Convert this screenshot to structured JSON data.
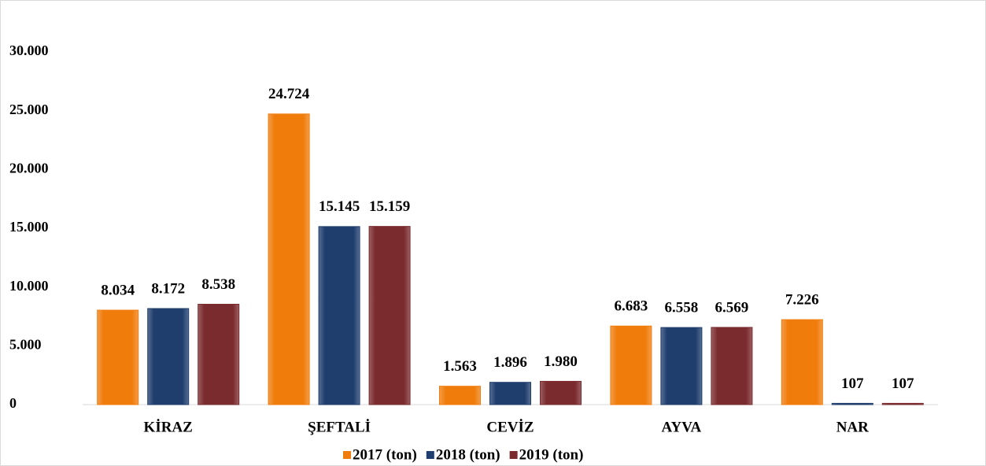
{
  "chart_data": {
    "type": "bar",
    "categories": [
      "KİRAZ",
      "ŞEFTALİ",
      "CEVİZ",
      "AYVA",
      "NAR"
    ],
    "series": [
      {
        "name": "2017 (ton)",
        "color": "#f07c0c",
        "values": [
          8034,
          24724,
          1563,
          6683,
          7226
        ],
        "value_labels": [
          "8.034",
          "24.724",
          "1.563",
          "6.683",
          "7.226"
        ]
      },
      {
        "name": "2018 (ton)",
        "color": "#1f3e6e",
        "values": [
          8172,
          15145,
          1896,
          6558,
          107
        ],
        "value_labels": [
          "8.172",
          "15.145",
          "1.896",
          "6.558",
          "107"
        ]
      },
      {
        "name": "2019 (ton)",
        "color": "#7a2b2e",
        "values": [
          8538,
          15159,
          1980,
          6569,
          107
        ],
        "value_labels": [
          "8.538",
          "15.159",
          "1.980",
          "6.569",
          "107"
        ]
      }
    ],
    "ylim": [
      0,
      30000
    ],
    "yticks": [
      {
        "value": 0,
        "label": "0"
      },
      {
        "value": 5000,
        "label": "5.000"
      },
      {
        "value": 10000,
        "label": "10.000"
      },
      {
        "value": 15000,
        "label": "15.000"
      },
      {
        "value": 20000,
        "label": "20.000"
      },
      {
        "value": 25000,
        "label": "25.000"
      },
      {
        "value": 30000,
        "label": "30.000"
      }
    ],
    "legend": "bottom"
  }
}
